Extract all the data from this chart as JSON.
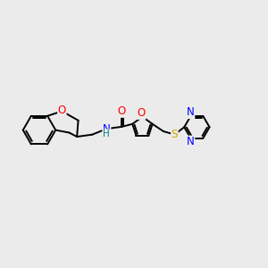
{
  "bg_color": "#ebebeb",
  "bond_color": "#000000",
  "atom_colors": {
    "O": "#ff0000",
    "N": "#0000ff",
    "S": "#ccaa00",
    "H": "#008080",
    "C": "#000000"
  },
  "line_width": 1.4,
  "font_size": 8.5
}
